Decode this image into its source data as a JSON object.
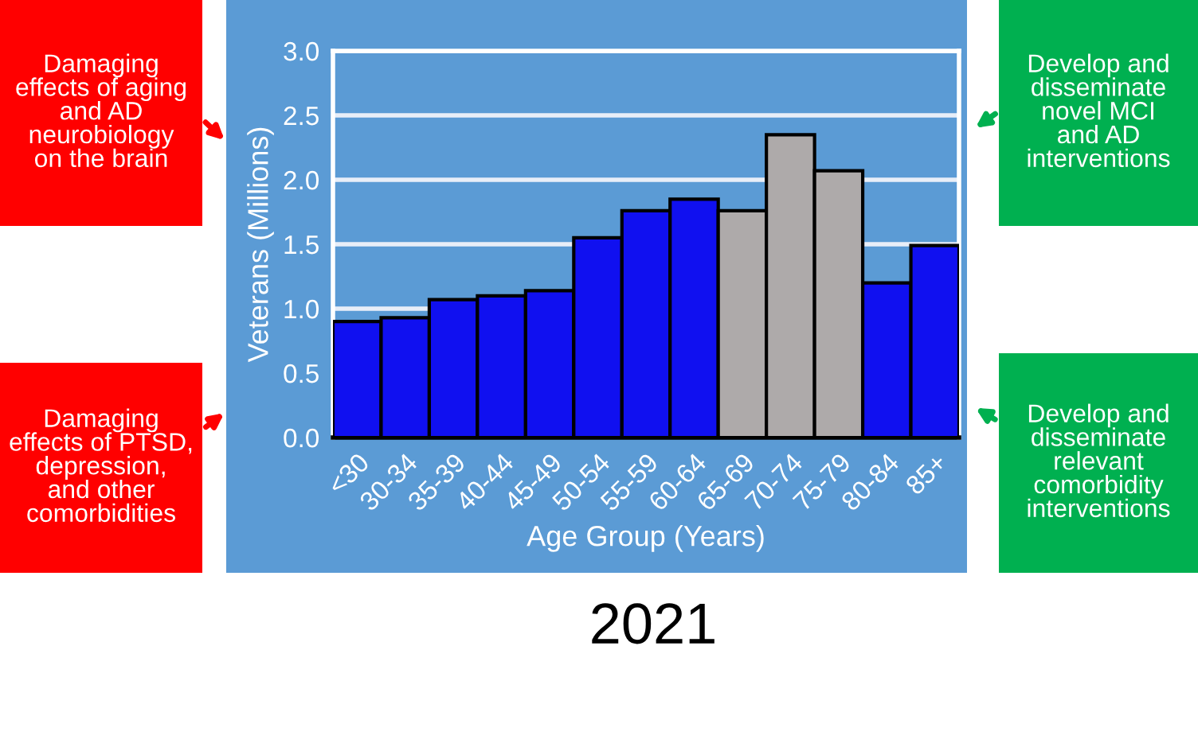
{
  "chart_data": {
    "type": "bar",
    "title": "2021",
    "xlabel": "Age Group (Years)",
    "ylabel": "Veterans (Millions)",
    "categories": [
      "<30",
      "30-34",
      "35-39",
      "40-44",
      "45-49",
      "50-54",
      "55-59",
      "60-64",
      "65-69",
      "70-74",
      "75-79",
      "80-84",
      "85+"
    ],
    "values": [
      0.9,
      0.93,
      1.07,
      1.1,
      1.14,
      1.55,
      1.76,
      1.85,
      1.76,
      2.35,
      2.07,
      1.2,
      1.49
    ],
    "colors": [
      "#1010f0",
      "#1010f0",
      "#1010f0",
      "#1010f0",
      "#1010f0",
      "#1010f0",
      "#1010f0",
      "#1010f0",
      "#aeaaaa",
      "#aeaaaa",
      "#aeaaaa",
      "#1010f0",
      "#1010f0"
    ],
    "ylim": [
      0,
      3.0
    ],
    "yticks": [
      {
        "value": 0,
        "label": "0.0"
      },
      {
        "value": 0.5,
        "label": "0.5"
      },
      {
        "value": 1.0,
        "label": "1.0"
      },
      {
        "value": 1.5,
        "label": "1.5"
      },
      {
        "value": 2.0,
        "label": "2.0"
      },
      {
        "value": 2.5,
        "label": "2.5"
      },
      {
        "value": 3.0,
        "label": "3.0"
      }
    ],
    "grid": "y",
    "annotations": [
      "Damaging\neffects of aging\nand AD\nneurobiology\non the brain",
      "Damaging\neffects of PTSD,\ndepression,\nand other\ncomorbidities",
      "Develop and\ndisseminate\nnovel MCI\nand AD\ninterventions",
      "Develop and\ndisseminate\nrelevant\ncomorbidity\ninterventions"
    ]
  }
}
